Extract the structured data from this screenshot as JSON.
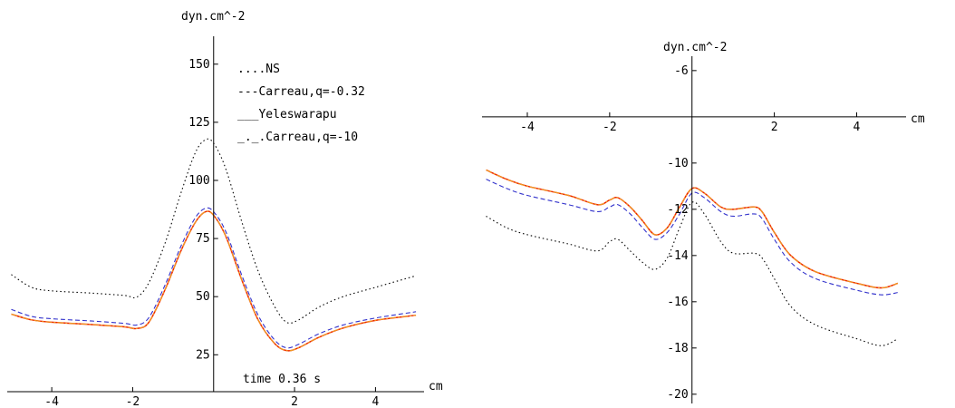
{
  "chart_data": [
    {
      "type": "line",
      "ylabel": "dyn.cm^-2",
      "xlabel": "cm",
      "annotation": "time 0.36 s",
      "xlim": [
        -5.1,
        5.2
      ],
      "ylim": [
        6,
        162
      ],
      "xticks": [
        "-4",
        "-2",
        "2",
        "4"
      ],
      "xtick_values": [
        -4,
        -2,
        2,
        4
      ],
      "yticks": [
        "25",
        "50",
        "75",
        "100",
        "125",
        "150"
      ],
      "ytick_values": [
        25,
        50,
        75,
        100,
        125,
        150
      ],
      "legend": [
        {
          "prefix": "....",
          "label": "NS",
          "color": "#000000"
        },
        {
          "prefix": "---",
          "label": "Carreau,q=-0.32",
          "color": "#3333cc"
        },
        {
          "prefix": "___",
          "label": "Yeleswarapu",
          "color": "#ee2200"
        },
        {
          "prefix": "_._.",
          "label": "Carreau,q=-10",
          "color": "#f0a020"
        }
      ],
      "series": [
        {
          "name": "NS",
          "color": "#000000",
          "dash": "1.5,3",
          "points": [
            [
              -5,
              59.5
            ],
            [
              -4.5,
              54
            ],
            [
              -4,
              52.5
            ],
            [
              -3,
              51.5
            ],
            [
              -2.2,
              50.5
            ],
            [
              -1.9,
              49.8
            ],
            [
              -1.6,
              56
            ],
            [
              -1.2,
              73
            ],
            [
              -0.8,
              95
            ],
            [
              -0.45,
              112
            ],
            [
              -0.2,
              117.5
            ],
            [
              0,
              116
            ],
            [
              0.3,
              105
            ],
            [
              0.7,
              82
            ],
            [
              1.1,
              61
            ],
            [
              1.5,
              46
            ],
            [
              1.8,
              39
            ],
            [
              2.1,
              40
            ],
            [
              2.6,
              45.5
            ],
            [
              3.2,
              50
            ],
            [
              4,
              54
            ],
            [
              5,
              59
            ]
          ]
        },
        {
          "name": "Carreau,q=-0.32",
          "color": "#3333cc",
          "dash": "5,3",
          "points": [
            [
              -5,
              44.5
            ],
            [
              -4.5,
              41.5
            ],
            [
              -4,
              40.5
            ],
            [
              -3,
              39.5
            ],
            [
              -2.2,
              38.5
            ],
            [
              -1.9,
              37.8
            ],
            [
              -1.6,
              41
            ],
            [
              -1.2,
              55
            ],
            [
              -0.8,
              72
            ],
            [
              -0.45,
              84
            ],
            [
              -0.2,
              88
            ],
            [
              0,
              86.5
            ],
            [
              0.3,
              78
            ],
            [
              0.7,
              59
            ],
            [
              1.1,
              42
            ],
            [
              1.5,
              31.5
            ],
            [
              1.8,
              28
            ],
            [
              2.1,
              29.5
            ],
            [
              2.6,
              34
            ],
            [
              3.2,
              37.8
            ],
            [
              4,
              40.8
            ],
            [
              5,
              43.5
            ]
          ]
        },
        {
          "name": "Yeleswarapu",
          "color": "#ee2200",
          "dash": "",
          "points": [
            [
              -5,
              42.5
            ],
            [
              -4.5,
              40
            ],
            [
              -4,
              39
            ],
            [
              -3,
              38
            ],
            [
              -2.2,
              37
            ],
            [
              -1.9,
              36.3
            ],
            [
              -1.6,
              39
            ],
            [
              -1.2,
              53
            ],
            [
              -0.8,
              70
            ],
            [
              -0.45,
              82
            ],
            [
              -0.2,
              86.5
            ],
            [
              0,
              85
            ],
            [
              0.3,
              76
            ],
            [
              0.7,
              57
            ],
            [
              1.1,
              40
            ],
            [
              1.5,
              30
            ],
            [
              1.8,
              26.8
            ],
            [
              2.1,
              28
            ],
            [
              2.6,
              32.5
            ],
            [
              3.2,
              36.5
            ],
            [
              4,
              39.8
            ],
            [
              5,
              42
            ]
          ]
        },
        {
          "name": "Carreau,q=-10",
          "color": "#f0a020",
          "dash": "7,2,2,2",
          "points": [
            [
              -5,
              42.5
            ],
            [
              -4.5,
              40
            ],
            [
              -4,
              39
            ],
            [
              -3,
              38
            ],
            [
              -2.2,
              37
            ],
            [
              -1.9,
              36.3
            ],
            [
              -1.6,
              39
            ],
            [
              -1.2,
              53
            ],
            [
              -0.8,
              70
            ],
            [
              -0.45,
              82
            ],
            [
              -0.2,
              86.5
            ],
            [
              0,
              85
            ],
            [
              0.3,
              76
            ],
            [
              0.7,
              57
            ],
            [
              1.1,
              40
            ],
            [
              1.5,
              30
            ],
            [
              1.8,
              26.8
            ],
            [
              2.1,
              28
            ],
            [
              2.6,
              32.5
            ],
            [
              3.2,
              36.5
            ],
            [
              4,
              39.8
            ],
            [
              5,
              42
            ]
          ]
        }
      ]
    },
    {
      "type": "line",
      "ylabel": "dyn.cm^-2",
      "xlabel": "cm",
      "xlim": [
        -5.1,
        5.2
      ],
      "ylim": [
        -20.4,
        -5.3
      ],
      "xticks": [
        "-4",
        "-2",
        "2",
        "4"
      ],
      "xtick_values": [
        -4,
        -2,
        2,
        4
      ],
      "yticks": [
        "-6",
        "-10",
        "-12",
        "-14",
        "-16",
        "-18",
        "-20"
      ],
      "ytick_values": [
        -6,
        -10,
        -12,
        -14,
        -16,
        -18,
        -20
      ],
      "series": [
        {
          "name": "NS",
          "color": "#000000",
          "dash": "1.5,3",
          "points": [
            [
              -5,
              -12.3
            ],
            [
              -4.5,
              -12.8
            ],
            [
              -4,
              -13.1
            ],
            [
              -3,
              -13.5
            ],
            [
              -2.3,
              -13.8
            ],
            [
              -2,
              -13.4
            ],
            [
              -1.8,
              -13.3
            ],
            [
              -1.5,
              -13.8
            ],
            [
              -1.2,
              -14.3
            ],
            [
              -0.9,
              -14.6
            ],
            [
              -0.6,
              -14.1
            ],
            [
              -0.3,
              -12.8
            ],
            [
              0,
              -11.7
            ],
            [
              0.3,
              -12.2
            ],
            [
              0.7,
              -13.4
            ],
            [
              1,
              -13.9
            ],
            [
              1.5,
              -13.9
            ],
            [
              1.7,
              -14.1
            ],
            [
              2,
              -15
            ],
            [
              2.4,
              -16.2
            ],
            [
              3,
              -17
            ],
            [
              4,
              -17.6
            ],
            [
              4.6,
              -17.9
            ],
            [
              5,
              -17.6
            ]
          ]
        },
        {
          "name": "Carreau,q=-0.32",
          "color": "#3333cc",
          "dash": "5,3",
          "points": [
            [
              -5,
              -10.7
            ],
            [
              -4.5,
              -11.1
            ],
            [
              -4,
              -11.4
            ],
            [
              -3,
              -11.8
            ],
            [
              -2.3,
              -12.1
            ],
            [
              -2,
              -11.9
            ],
            [
              -1.8,
              -11.8
            ],
            [
              -1.5,
              -12.2
            ],
            [
              -1.2,
              -12.8
            ],
            [
              -0.9,
              -13.3
            ],
            [
              -0.6,
              -13
            ],
            [
              -0.3,
              -12.2
            ],
            [
              0,
              -11.3
            ],
            [
              0.3,
              -11.5
            ],
            [
              0.7,
              -12.1
            ],
            [
              1,
              -12.3
            ],
            [
              1.5,
              -12.2
            ],
            [
              1.7,
              -12.4
            ],
            [
              2,
              -13.3
            ],
            [
              2.4,
              -14.3
            ],
            [
              3,
              -15
            ],
            [
              4,
              -15.5
            ],
            [
              4.6,
              -15.7
            ],
            [
              5,
              -15.6
            ]
          ]
        },
        {
          "name": "Yeleswarapu",
          "color": "#ee2200",
          "dash": "",
          "points": [
            [
              -5,
              -10.3
            ],
            [
              -4.5,
              -10.7
            ],
            [
              -4,
              -11
            ],
            [
              -3,
              -11.4
            ],
            [
              -2.3,
              -11.8
            ],
            [
              -2,
              -11.6
            ],
            [
              -1.8,
              -11.5
            ],
            [
              -1.5,
              -11.9
            ],
            [
              -1.2,
              -12.5
            ],
            [
              -0.9,
              -13.1
            ],
            [
              -0.6,
              -12.8
            ],
            [
              -0.3,
              -11.9
            ],
            [
              0,
              -11.1
            ],
            [
              0.3,
              -11.3
            ],
            [
              0.7,
              -11.9
            ],
            [
              1,
              -12
            ],
            [
              1.5,
              -11.9
            ],
            [
              1.7,
              -12.1
            ],
            [
              2,
              -13
            ],
            [
              2.4,
              -14
            ],
            [
              3,
              -14.7
            ],
            [
              4,
              -15.2
            ],
            [
              4.6,
              -15.4
            ],
            [
              5,
              -15.2
            ]
          ]
        },
        {
          "name": "Carreau,q=-10",
          "color": "#f0a020",
          "dash": "7,2,2,2",
          "points": [
            [
              -5,
              -10.3
            ],
            [
              -4.5,
              -10.7
            ],
            [
              -4,
              -11
            ],
            [
              -3,
              -11.4
            ],
            [
              -2.3,
              -11.8
            ],
            [
              -2,
              -11.6
            ],
            [
              -1.8,
              -11.5
            ],
            [
              -1.5,
              -11.9
            ],
            [
              -1.2,
              -12.5
            ],
            [
              -0.9,
              -13.1
            ],
            [
              -0.6,
              -12.8
            ],
            [
              -0.3,
              -11.9
            ],
            [
              0,
              -11.1
            ],
            [
              0.3,
              -11.3
            ],
            [
              0.7,
              -11.9
            ],
            [
              1,
              -12
            ],
            [
              1.5,
              -11.9
            ],
            [
              1.7,
              -12.1
            ],
            [
              2,
              -13
            ],
            [
              2.4,
              -14
            ],
            [
              3,
              -14.7
            ],
            [
              4,
              -15.2
            ],
            [
              4.6,
              -15.4
            ],
            [
              5,
              -15.2
            ]
          ]
        }
      ]
    }
  ]
}
